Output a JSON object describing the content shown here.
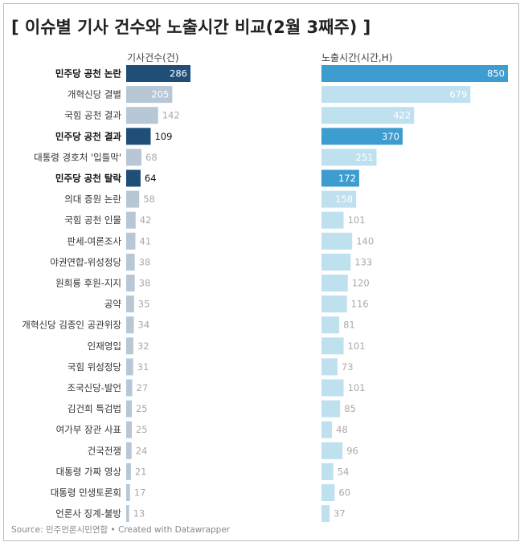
{
  "title": "[ 이슈별 기사 건수와 노출시간 비교(2월 3째주) ]",
  "source": "Source: 민주언론시민연합 • Created with Datawrapper",
  "colors": {
    "articles_highlight": "#1f4e79",
    "articles_normal": "#b7c7d6",
    "time_highlight": "#3d9cd0",
    "time_normal": "#bfe0ef"
  },
  "chart_data": {
    "type": "bar",
    "orientation": "horizontal",
    "series": [
      {
        "name": "기사건수(건)",
        "values": [
          286,
          205,
          142,
          109,
          68,
          64,
          58,
          42,
          41,
          38,
          38,
          35,
          34,
          32,
          31,
          27,
          25,
          25,
          24,
          21,
          17,
          13
        ]
      },
      {
        "name": "노출시간(시간,H)",
        "values": [
          850,
          679,
          422,
          370,
          251,
          172,
          158,
          101,
          140,
          133,
          120,
          116,
          81,
          101,
          73,
          101,
          85,
          48,
          96,
          54,
          60,
          37
        ]
      }
    ],
    "categories": [
      "민주당 공천 논란",
      "개혁신당 결별",
      "국힘 공천 결과",
      "민주당 공천 결과",
      "대통령 경호처 '입틀막'",
      "민주당 공천 탈락",
      "의대 증원 논란",
      "국힘 공천 인물",
      "판세-여론조사",
      "야권연합-위성정당",
      "원희룡 후원-지지",
      "공약",
      "개혁신당 김종인 공관위장",
      "인재영입",
      "국힘 위성정당",
      "조국신당-발언",
      "김건희 특검법",
      "여가부 장관 사표",
      "건국전쟁",
      "대통령 가짜 영상",
      "대통령 민생토론회",
      "언론사 징계-불방"
    ],
    "highlighted": [
      true,
      false,
      false,
      true,
      false,
      true,
      false,
      false,
      false,
      false,
      false,
      false,
      false,
      false,
      false,
      false,
      false,
      false,
      false,
      false,
      false,
      false
    ],
    "value_labels": "on bars",
    "legend": "none"
  }
}
